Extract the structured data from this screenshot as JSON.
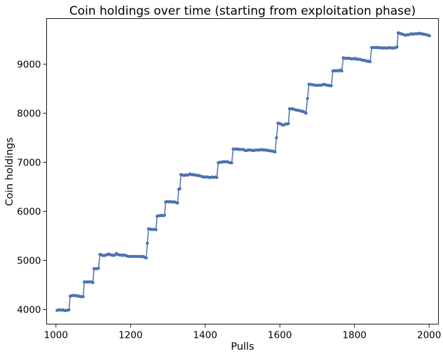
{
  "chart_data": {
    "type": "line",
    "title": "Coin holdings over time (starting from exploitation phase)",
    "xlabel": "Pulls",
    "ylabel": "Coin holdings",
    "xlim": [
      975,
      2025
    ],
    "ylim": [
      3700,
      9930
    ],
    "xticks": [
      1000,
      1200,
      1400,
      1600,
      1800,
      2000
    ],
    "yticks": [
      4000,
      5000,
      6000,
      7000,
      8000,
      9000
    ],
    "grid": false,
    "legend": "none",
    "line_color": "#4c72b0",
    "marker": "circle",
    "series": [
      {
        "points": [
          [
            1003,
            3980
          ],
          [
            1007,
            3990
          ],
          [
            1011,
            3990
          ],
          [
            1015,
            3985
          ],
          [
            1019,
            3990
          ],
          [
            1023,
            3980
          ],
          [
            1027,
            3975
          ],
          [
            1031,
            3985
          ],
          [
            1035,
            3990
          ],
          [
            1038,
            4270
          ],
          [
            1042,
            4280
          ],
          [
            1046,
            4285
          ],
          [
            1050,
            4280
          ],
          [
            1054,
            4285
          ],
          [
            1058,
            4270
          ],
          [
            1062,
            4270
          ],
          [
            1066,
            4260
          ],
          [
            1070,
            4260
          ],
          [
            1073,
            4260
          ],
          [
            1076,
            4560
          ],
          [
            1080,
            4560
          ],
          [
            1084,
            4560
          ],
          [
            1088,
            4560
          ],
          [
            1092,
            4560
          ],
          [
            1096,
            4560
          ],
          [
            1099,
            4545
          ],
          [
            1102,
            4830
          ],
          [
            1106,
            4830
          ],
          [
            1110,
            4830
          ],
          [
            1114,
            4840
          ],
          [
            1118,
            5120
          ],
          [
            1122,
            5110
          ],
          [
            1126,
            5100
          ],
          [
            1130,
            5100
          ],
          [
            1134,
            5110
          ],
          [
            1138,
            5120
          ],
          [
            1142,
            5130
          ],
          [
            1146,
            5110
          ],
          [
            1150,
            5110
          ],
          [
            1154,
            5100
          ],
          [
            1158,
            5110
          ],
          [
            1162,
            5140
          ],
          [
            1166,
            5120
          ],
          [
            1170,
            5110
          ],
          [
            1174,
            5110
          ],
          [
            1178,
            5100
          ],
          [
            1182,
            5110
          ],
          [
            1186,
            5100
          ],
          [
            1190,
            5090
          ],
          [
            1194,
            5080
          ],
          [
            1198,
            5080
          ],
          [
            1202,
            5080
          ],
          [
            1206,
            5080
          ],
          [
            1210,
            5080
          ],
          [
            1214,
            5080
          ],
          [
            1218,
            5080
          ],
          [
            1222,
            5080
          ],
          [
            1226,
            5080
          ],
          [
            1230,
            5075
          ],
          [
            1234,
            5080
          ],
          [
            1238,
            5060
          ],
          [
            1242,
            5050
          ],
          [
            1245,
            5350
          ],
          [
            1248,
            5640
          ],
          [
            1252,
            5640
          ],
          [
            1256,
            5630
          ],
          [
            1260,
            5630
          ],
          [
            1264,
            5630
          ],
          [
            1268,
            5625
          ],
          [
            1271,
            5900
          ],
          [
            1275,
            5910
          ],
          [
            1279,
            5910
          ],
          [
            1283,
            5920
          ],
          [
            1287,
            5910
          ],
          [
            1291,
            5920
          ],
          [
            1294,
            6190
          ],
          [
            1298,
            6200
          ],
          [
            1302,
            6190
          ],
          [
            1306,
            6200
          ],
          [
            1310,
            6190
          ],
          [
            1314,
            6190
          ],
          [
            1318,
            6190
          ],
          [
            1322,
            6180
          ],
          [
            1326,
            6170
          ],
          [
            1329,
            6450
          ],
          [
            1332,
            6460
          ],
          [
            1335,
            6750
          ],
          [
            1339,
            6740
          ],
          [
            1343,
            6730
          ],
          [
            1347,
            6740
          ],
          [
            1351,
            6740
          ],
          [
            1355,
            6740
          ],
          [
            1359,
            6760
          ],
          [
            1363,
            6750
          ],
          [
            1367,
            6750
          ],
          [
            1371,
            6740
          ],
          [
            1375,
            6740
          ],
          [
            1379,
            6730
          ],
          [
            1383,
            6730
          ],
          [
            1387,
            6720
          ],
          [
            1391,
            6710
          ],
          [
            1395,
            6700
          ],
          [
            1399,
            6700
          ],
          [
            1403,
            6700
          ],
          [
            1407,
            6700
          ],
          [
            1411,
            6690
          ],
          [
            1415,
            6690
          ],
          [
            1419,
            6700
          ],
          [
            1423,
            6690
          ],
          [
            1427,
            6700
          ],
          [
            1431,
            6690
          ],
          [
            1435,
            6990
          ],
          [
            1439,
            7000
          ],
          [
            1443,
            7000
          ],
          [
            1447,
            7010
          ],
          [
            1451,
            7010
          ],
          [
            1455,
            7010
          ],
          [
            1459,
            7010
          ],
          [
            1463,
            7000
          ],
          [
            1467,
            6990
          ],
          [
            1471,
            6990
          ],
          [
            1475,
            7270
          ],
          [
            1479,
            7270
          ],
          [
            1483,
            7270
          ],
          [
            1487,
            7270
          ],
          [
            1491,
            7260
          ],
          [
            1495,
            7260
          ],
          [
            1499,
            7260
          ],
          [
            1503,
            7260
          ],
          [
            1507,
            7240
          ],
          [
            1511,
            7240
          ],
          [
            1515,
            7250
          ],
          [
            1519,
            7250
          ],
          [
            1523,
            7250
          ],
          [
            1527,
            7240
          ],
          [
            1531,
            7240
          ],
          [
            1535,
            7250
          ],
          [
            1539,
            7250
          ],
          [
            1543,
            7250
          ],
          [
            1547,
            7250
          ],
          [
            1551,
            7260
          ],
          [
            1555,
            7250
          ],
          [
            1559,
            7250
          ],
          [
            1563,
            7250
          ],
          [
            1567,
            7240
          ],
          [
            1571,
            7240
          ],
          [
            1575,
            7230
          ],
          [
            1579,
            7230
          ],
          [
            1583,
            7220
          ],
          [
            1587,
            7210
          ],
          [
            1591,
            7500
          ],
          [
            1595,
            7800
          ],
          [
            1599,
            7790
          ],
          [
            1603,
            7780
          ],
          [
            1607,
            7760
          ],
          [
            1611,
            7760
          ],
          [
            1615,
            7780
          ],
          [
            1619,
            7780
          ],
          [
            1623,
            7790
          ],
          [
            1626,
            8090
          ],
          [
            1630,
            8090
          ],
          [
            1634,
            8090
          ],
          [
            1638,
            8080
          ],
          [
            1642,
            8070
          ],
          [
            1646,
            8060
          ],
          [
            1650,
            8060
          ],
          [
            1654,
            8050
          ],
          [
            1658,
            8040
          ],
          [
            1662,
            8040
          ],
          [
            1666,
            8020
          ],
          [
            1670,
            8000
          ],
          [
            1674,
            8300
          ],
          [
            1678,
            8590
          ],
          [
            1682,
            8590
          ],
          [
            1686,
            8580
          ],
          [
            1690,
            8580
          ],
          [
            1694,
            8570
          ],
          [
            1698,
            8570
          ],
          [
            1702,
            8570
          ],
          [
            1706,
            8570
          ],
          [
            1710,
            8570
          ],
          [
            1714,
            8580
          ],
          [
            1718,
            8590
          ],
          [
            1722,
            8580
          ],
          [
            1726,
            8570
          ],
          [
            1730,
            8570
          ],
          [
            1734,
            8560
          ],
          [
            1738,
            8560
          ],
          [
            1742,
            8860
          ],
          [
            1746,
            8870
          ],
          [
            1750,
            8860
          ],
          [
            1754,
            8870
          ],
          [
            1758,
            8860
          ],
          [
            1762,
            8880
          ],
          [
            1766,
            8860
          ],
          [
            1770,
            9130
          ],
          [
            1774,
            9120
          ],
          [
            1778,
            9120
          ],
          [
            1782,
            9120
          ],
          [
            1786,
            9120
          ],
          [
            1790,
            9110
          ],
          [
            1794,
            9110
          ],
          [
            1798,
            9110
          ],
          [
            1802,
            9120
          ],
          [
            1806,
            9100
          ],
          [
            1810,
            9100
          ],
          [
            1814,
            9100
          ],
          [
            1818,
            9090
          ],
          [
            1822,
            9080
          ],
          [
            1826,
            9080
          ],
          [
            1830,
            9070
          ],
          [
            1834,
            9060
          ],
          [
            1838,
            9060
          ],
          [
            1842,
            9050
          ],
          [
            1846,
            9340
          ],
          [
            1850,
            9340
          ],
          [
            1854,
            9340
          ],
          [
            1858,
            9340
          ],
          [
            1862,
            9340
          ],
          [
            1866,
            9340
          ],
          [
            1870,
            9330
          ],
          [
            1874,
            9330
          ],
          [
            1878,
            9330
          ],
          [
            1882,
            9330
          ],
          [
            1886,
            9330
          ],
          [
            1890,
            9330
          ],
          [
            1894,
            9340
          ],
          [
            1898,
            9330
          ],
          [
            1902,
            9330
          ],
          [
            1906,
            9330
          ],
          [
            1910,
            9340
          ],
          [
            1914,
            9350
          ],
          [
            1917,
            9640
          ],
          [
            1921,
            9630
          ],
          [
            1925,
            9620
          ],
          [
            1929,
            9610
          ],
          [
            1933,
            9600
          ],
          [
            1937,
            9590
          ],
          [
            1941,
            9600
          ],
          [
            1945,
            9600
          ],
          [
            1949,
            9610
          ],
          [
            1953,
            9620
          ],
          [
            1957,
            9610
          ],
          [
            1961,
            9620
          ],
          [
            1965,
            9620
          ],
          [
            1969,
            9620
          ],
          [
            1973,
            9630
          ],
          [
            1977,
            9620
          ],
          [
            1981,
            9620
          ],
          [
            1985,
            9610
          ],
          [
            1989,
            9610
          ],
          [
            1993,
            9600
          ],
          [
            1997,
            9590
          ],
          [
            2001,
            9580
          ]
        ]
      }
    ]
  }
}
